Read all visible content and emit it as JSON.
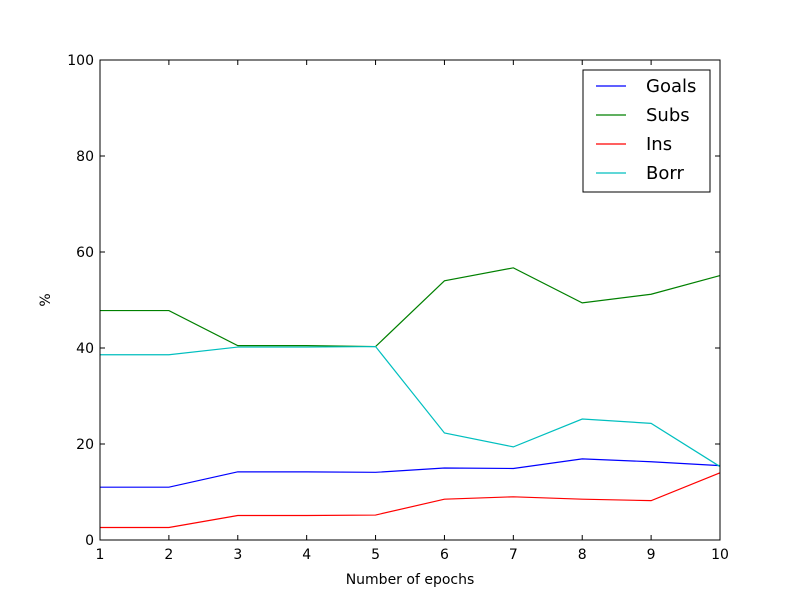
{
  "chart_data": {
    "type": "line",
    "title": "",
    "xlabel": "Number of epochs",
    "ylabel": "%",
    "xlim": [
      1,
      10
    ],
    "ylim": [
      0,
      100
    ],
    "x": [
      1,
      2,
      3,
      4,
      5,
      6,
      7,
      8,
      9,
      10
    ],
    "xticks": [
      "1",
      "2",
      "3",
      "4",
      "5",
      "6",
      "7",
      "8",
      "9",
      "10"
    ],
    "yticks": [
      "0",
      "20",
      "40",
      "60",
      "80",
      "100"
    ],
    "grid": false,
    "legend_position": "top-right",
    "series": [
      {
        "name": "Goals",
        "color": "#0000ff",
        "values": [
          11.0,
          11.0,
          14.2,
          14.2,
          14.1,
          15.0,
          14.9,
          16.9,
          16.3,
          15.5
        ]
      },
      {
        "name": "Subs",
        "color": "#008000",
        "values": [
          47.8,
          47.8,
          40.5,
          40.5,
          40.3,
          54.0,
          56.7,
          49.4,
          51.2,
          55.1
        ]
      },
      {
        "name": "Ins",
        "color": "#ff0000",
        "values": [
          2.6,
          2.6,
          5.1,
          5.1,
          5.2,
          8.5,
          9.0,
          8.5,
          8.2,
          14.0
        ]
      },
      {
        "name": "Borr",
        "color": "#00bfbf",
        "values": [
          38.6,
          38.6,
          40.2,
          40.2,
          40.3,
          22.3,
          19.4,
          25.2,
          24.3,
          15.3
        ]
      }
    ]
  }
}
